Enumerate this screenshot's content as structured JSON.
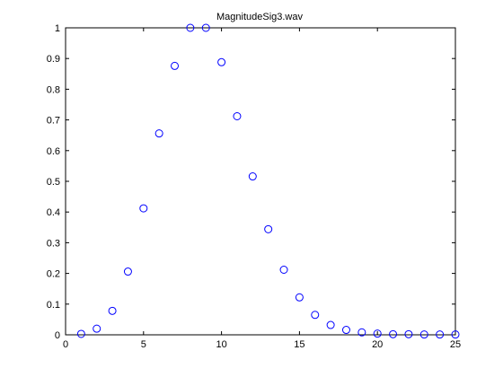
{
  "chart_data": {
    "type": "scatter",
    "title": "MagnitudeSig3.wav",
    "xlabel": "",
    "ylabel": "",
    "xlim": [
      0,
      25
    ],
    "ylim": [
      0,
      1
    ],
    "grid": false,
    "legend": "none",
    "marker": "circle-open",
    "marker_color": "#0000ff",
    "x_ticks": [
      0,
      5,
      10,
      15,
      20,
      25
    ],
    "x_tick_labels": [
      "0",
      "5",
      "10",
      "15",
      "20",
      "25"
    ],
    "y_ticks": [
      0,
      0.1,
      0.2,
      0.3,
      0.4,
      0.5,
      0.6,
      0.7,
      0.8,
      0.9,
      1
    ],
    "y_tick_labels": [
      "0",
      "0.1",
      "0.2",
      "0.3",
      "0.4",
      "0.5",
      "0.6",
      "0.7",
      "0.8",
      "0.9",
      "1"
    ],
    "series": [
      {
        "x": [
          1,
          2,
          3,
          4,
          5,
          6,
          7,
          8,
          9,
          10,
          11,
          12,
          13,
          14,
          15,
          16,
          17,
          18,
          19,
          20,
          21,
          22,
          23,
          24,
          25
        ],
        "y": [
          0.003,
          0.02,
          0.078,
          0.206,
          0.412,
          0.656,
          0.876,
          1.0,
          1.0,
          0.888,
          0.712,
          0.516,
          0.344,
          0.212,
          0.122,
          0.065,
          0.032,
          0.016,
          0.008,
          0.004,
          0.002,
          0.002,
          0.001,
          0.001,
          0.001
        ]
      }
    ]
  }
}
